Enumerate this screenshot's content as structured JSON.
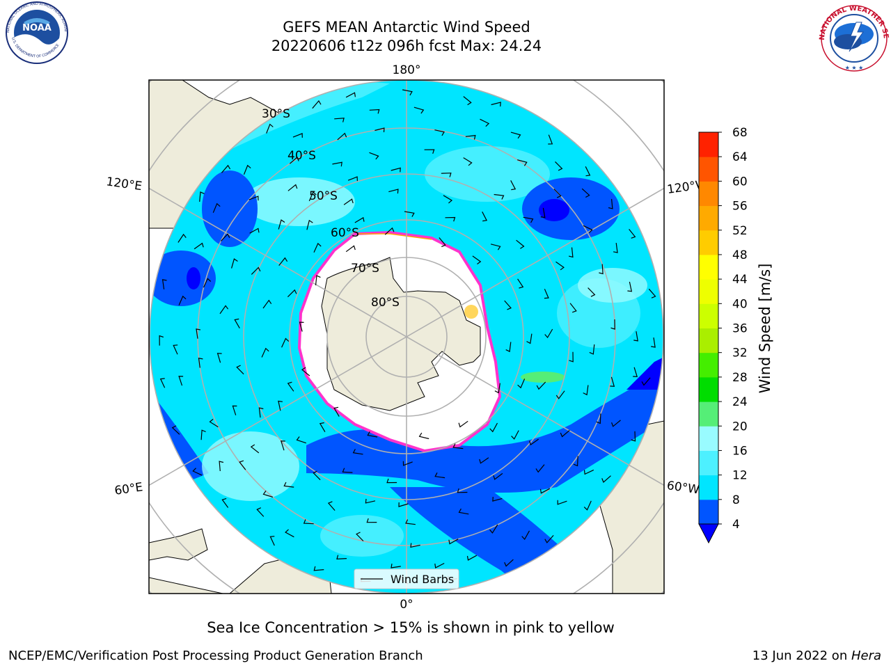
{
  "header": {
    "title_line1": "GEFS MEAN Antarctic Wind Speed",
    "title_line2": "20220606 t12z 096h fcst   Max: 24.24"
  },
  "logos": {
    "noaa_text": "NOAA",
    "noaa_ring": "NATIONAL OCEANIC AND ATMOSPHERIC ADMINISTRATION",
    "noaa_ring_bottom": "U.S. DEPARTMENT OF COMMERCE",
    "nws_ring": "NATIONAL WEATHER SERVICE"
  },
  "map": {
    "lon_labels": {
      "top": "180°",
      "left_upper": "120°E",
      "right_upper": "120°W",
      "left_lower": "60°E",
      "right_lower": "60°W",
      "bottom": "0°"
    },
    "lat_labels": [
      "30°S",
      "40°S",
      "50°S",
      "60°S",
      "70°S",
      "80°S"
    ],
    "legend_label": "Wind Barbs",
    "colors": {
      "land": "#eeecdb",
      "ice": "#ffffff",
      "ice_edge": "#ff33cc",
      "graticule": "#b0b0b0"
    }
  },
  "colorbar": {
    "label": "Wind Speed [m/s]",
    "ticks": [
      "4",
      "8",
      "12",
      "16",
      "20",
      "24",
      "28",
      "32",
      "36",
      "40",
      "44",
      "48",
      "52",
      "56",
      "60",
      "64",
      "68"
    ],
    "colors": [
      "#0055ff",
      "#00e5ff",
      "#4df0ff",
      "#99fbff",
      "#55ee77",
      "#00dd00",
      "#44ee00",
      "#aaee00",
      "#ccff00",
      "#eeff00",
      "#ffff00",
      "#ffcc00",
      "#ffaa00",
      "#ff8800",
      "#ff5500",
      "#ff2200"
    ],
    "under_color": "#0000ff"
  },
  "footer": {
    "note": "Sea Ice Concentration > 15% is shown in pink to yellow",
    "credit": "NCEP/EMC/Verification Post Processing Product Generation Branch",
    "date": "13 Jun 2022 on ",
    "machine": "Hera"
  }
}
